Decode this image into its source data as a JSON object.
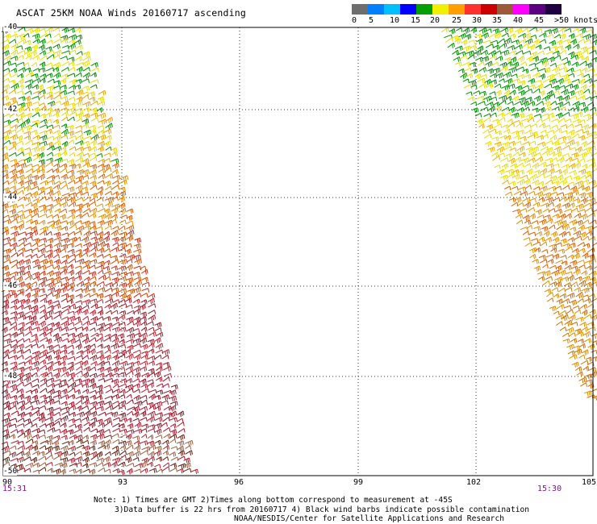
{
  "title": "ASCAT 25KM NOAA Winds 20160717 ascending",
  "legend": {
    "colors": [
      "#6e6e6e",
      "#0080ff",
      "#00c0ff",
      "#0000ff",
      "#00a000",
      "#f0f000",
      "#ffa000",
      "#ff3030",
      "#cc0000",
      "#9c5a3a",
      "#ff00ff",
      "#5a0080",
      "#200040"
    ],
    "labels": [
      "0",
      "5",
      "10",
      "15",
      "20",
      "25",
      "30",
      "35",
      "40",
      "45",
      ">50 knots"
    ]
  },
  "map": {
    "x_ticks": [
      "90",
      "93",
      "96",
      "99",
      "102",
      "105"
    ],
    "y_ticks": [
      "-40",
      "-42",
      "-44",
      "-46",
      "-48",
      "-50"
    ],
    "lon_range": [
      90,
      105
    ],
    "lat_range": [
      -40,
      -50
    ]
  },
  "pass_times": {
    "left": "15:31",
    "right": "15:30"
  },
  "notes": [
    "Note: 1) Times are GMT 2)Times along bottom correspond to measurement at -45S",
    "3)Data buffer is 22 hrs from 20160717 4) Black wind barbs indicate possible contamination",
    "NOAA/NESDIS/Center for Satellite Applications and Research"
  ]
}
